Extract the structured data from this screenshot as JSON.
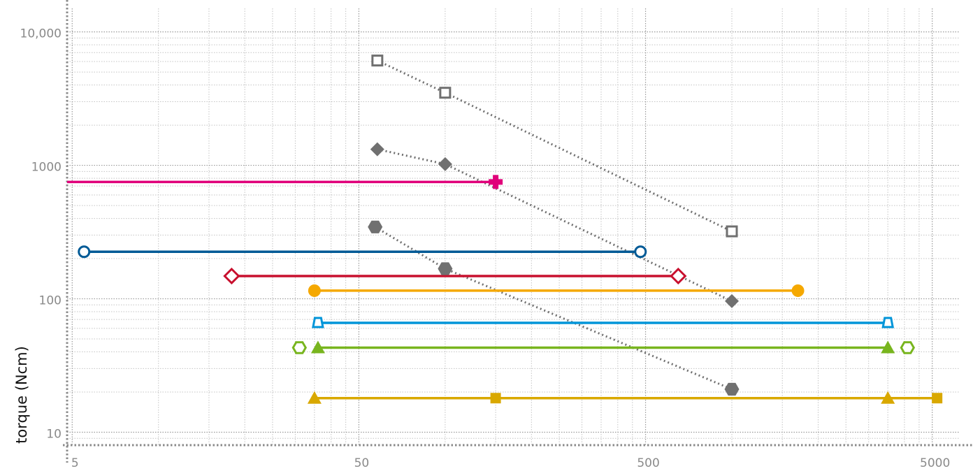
{
  "chart_data": {
    "type": "line",
    "title": "",
    "xlabel": "",
    "ylabel": "torque (Ncm)",
    "x_scale": "log",
    "y_scale": "log",
    "xlim": [
      4.8,
      6200
    ],
    "ylim": [
      8,
      15000
    ],
    "x_major_grid": [
      5,
      50,
      500,
      5000
    ],
    "y_major_grid": [
      10,
      100,
      1000,
      10000
    ],
    "x_ticks": [
      {
        "value": 5,
        "label": "5"
      },
      {
        "value": 50,
        "label": "50"
      },
      {
        "value": 500,
        "label": "500"
      },
      {
        "value": 5000,
        "label": "5000"
      }
    ],
    "y_ticks": [
      {
        "value": 10,
        "label": "10"
      },
      {
        "value": 100,
        "label": "100"
      },
      {
        "value": 1000,
        "label": "1000"
      },
      {
        "value": 10000,
        "label": "10,000"
      }
    ],
    "grid": true,
    "series": [
      {
        "color": "#707070",
        "line": "dotted",
        "marker": "square-open",
        "points": [
          [
            58,
            6100
          ],
          [
            100,
            3500
          ],
          [
            1000,
            320
          ]
        ]
      },
      {
        "color": "#707070",
        "line": "dotted",
        "marker": "diamond",
        "points": [
          [
            58,
            1320
          ],
          [
            100,
            1020
          ],
          [
            1000,
            96
          ]
        ]
      },
      {
        "color": "#707070",
        "line": "dotted",
        "marker": "hexagon",
        "points": [
          [
            57,
            345
          ],
          [
            100,
            168
          ],
          [
            1000,
            21
          ]
        ]
      },
      {
        "color": "#e0007a",
        "line": "solid",
        "marker": "plus",
        "points": [
          [
            4.8,
            750
          ],
          [
            150,
            750
          ]
        ]
      },
      {
        "color": "#005a96",
        "line": "solid",
        "marker": "circle-open",
        "points": [
          [
            5.5,
            225
          ],
          [
            480,
            225
          ]
        ]
      },
      {
        "color": "#c8102e",
        "line": "solid",
        "marker": "diamond-open",
        "points": [
          [
            18,
            148
          ],
          [
            650,
            148
          ]
        ]
      },
      {
        "color": "#f5a800",
        "line": "solid",
        "marker": "circle",
        "points": [
          [
            35,
            115
          ],
          [
            1700,
            115
          ]
        ]
      },
      {
        "color": "#0095d9",
        "line": "solid",
        "marker": "trapezoid-open",
        "points": [
          [
            36,
            66
          ],
          [
            3500,
            66
          ]
        ]
      },
      {
        "color": "#78b51e",
        "line": "solid",
        "marker": "triangle",
        "points": [
          [
            36,
            43
          ],
          [
            3500,
            43
          ]
        ]
      },
      {
        "color": "#78b51e",
        "line": "none",
        "marker": "hexagon-open",
        "points": [
          [
            31,
            43
          ],
          [
            4100,
            43
          ]
        ]
      },
      {
        "color": "#d9a800",
        "line": "solid",
        "marker": "triangle",
        "points": [
          [
            35,
            18
          ],
          [
            3500,
            18
          ]
        ]
      },
      {
        "color": "#d9a800",
        "line": "solid",
        "marker": "square",
        "points": [
          [
            150,
            18
          ],
          [
            5200,
            18
          ]
        ]
      }
    ]
  }
}
